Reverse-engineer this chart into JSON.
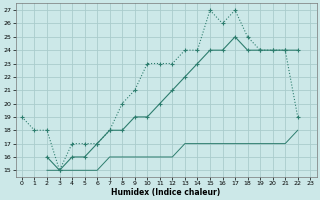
{
  "title": "",
  "xlabel": "Humidex (Indice chaleur)",
  "background_color": "#cce8e8",
  "grid_color": "#aacccc",
  "line_color": "#2d7d6e",
  "xlim": [
    -0.5,
    23.5
  ],
  "ylim": [
    14.5,
    27.5
  ],
  "xticks": [
    0,
    1,
    2,
    3,
    4,
    5,
    6,
    7,
    8,
    9,
    10,
    11,
    12,
    13,
    14,
    15,
    16,
    17,
    18,
    19,
    20,
    21,
    22,
    23
  ],
  "yticks": [
    15,
    16,
    17,
    18,
    19,
    20,
    21,
    22,
    23,
    24,
    25,
    26,
    27
  ],
  "line1_x": [
    0,
    1,
    2,
    3,
    4,
    5,
    6,
    7,
    8,
    9,
    10,
    11,
    12,
    13,
    14,
    15,
    16,
    17,
    18,
    19,
    20,
    21,
    22
  ],
  "line1_y": [
    19,
    18,
    18,
    15,
    17,
    17,
    17,
    18,
    20,
    21,
    23,
    23,
    23,
    24,
    24,
    27,
    26,
    27,
    25,
    24,
    24,
    24,
    19
  ],
  "line2_x": [
    2,
    3,
    4,
    5,
    6,
    7,
    8,
    9,
    10,
    11,
    12,
    13,
    14,
    15,
    16,
    17,
    18,
    19,
    20,
    21,
    22
  ],
  "line2_y": [
    16,
    15,
    16,
    16,
    17,
    18,
    18,
    19,
    19,
    20,
    21,
    22,
    23,
    24,
    24,
    25,
    24,
    24,
    24,
    24,
    24
  ],
  "line3_x": [
    2,
    3,
    4,
    5,
    6,
    7,
    8,
    9,
    10,
    11,
    12,
    13,
    14,
    15,
    16,
    17,
    18,
    19,
    20,
    21,
    22
  ],
  "line3_y": [
    15,
    15,
    15,
    15,
    15,
    16,
    16,
    16,
    16,
    16,
    16,
    17,
    17,
    17,
    17,
    17,
    17,
    17,
    17,
    17,
    18
  ]
}
